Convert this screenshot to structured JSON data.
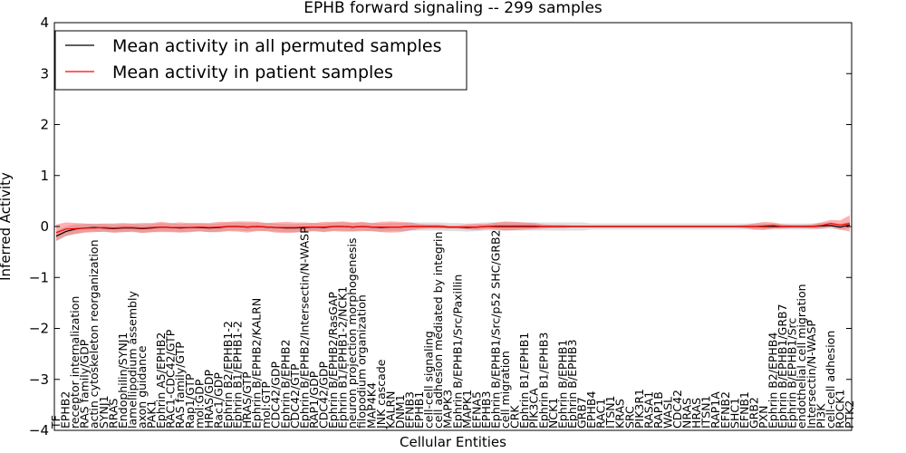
{
  "chart_data": {
    "type": "line",
    "title": "EPHB forward signaling -- 299 samples",
    "xlabel": "Cellular Entities",
    "ylabel": "Inferred Activity",
    "ylim": [
      -4,
      4
    ],
    "yticks": [
      -4,
      -3,
      -2,
      -1,
      0,
      1,
      2,
      3,
      4
    ],
    "grid": false,
    "legend_position": "top-left",
    "categories": [
      "TF",
      "EPHB2",
      "receptor internalization",
      "RAS family/GDP",
      "actin cytoskeleton reorganization",
      "SYNJ1",
      "RRAS",
      "Endophilin/SYNJ1",
      "lamellipodium assembly",
      "axon guidance",
      "PAK1",
      "Ephrin A5/EPHB2",
      "RAC1-CDC42/GTP",
      "RAS family/GTP",
      "Rap1/GTP",
      "mol:GDP",
      "HRAS/GDP",
      "Rac1/GDP",
      "Ephrin B2/EPHB1-2",
      "Ephrin B1/EPHB1-2",
      "HRAS/GTP",
      "Ephrin B/EPHB2/KALRN",
      "mol:GTP",
      "CDC42/GDP",
      "Ephrin B/EPHB2",
      "CDC42/GTP",
      "Ephrin B/EPHB2/Intersectin/N-WASP",
      "RAP1/GDP",
      "CDC42/GDP",
      "Ephrin B/EPHB2/RasGAP",
      "Ephrin B1/EPHB1-2/NCK1",
      "neuron projection morphogenesis",
      "filopodium organization",
      "MAP4K4",
      "JNK cascade",
      "KALRN",
      "DNM1",
      "EFNB3",
      "EPHB1",
      "cell-cell signaling",
      "cell adhesion mediated by integrin",
      "MAPK3",
      "Ephrin B/EPHB1/Src/Paxillin",
      "MAPK1",
      "EFNA5",
      "EPHB3",
      "Ephrin B/EPHB1/Src/p52 SHC/GRB2",
      "cell migration",
      "CRK",
      "Ephrin B1/EPHB1",
      "PIK3CA",
      "Ephrin B1/EPHB3",
      "NCK1",
      "Ephrin B/EPHB1",
      "Ephrin B/EPHB3",
      "GRB7",
      "EPHB4",
      "RAC1",
      "ITSN1",
      "KRAS",
      "SRC",
      "PIK3R1",
      "RASA1",
      "RAP1B",
      "WASL",
      "CDC42",
      "NRAS",
      "HRAS",
      "ITSN1",
      "RAP1A",
      "EFNB2",
      "SHC1",
      "EFNB1",
      "GRB2",
      "PXN",
      "Ephrin B2/EPHB4",
      "Ephrin B/EPHB1/GRB7",
      "Ephrin B/EPHB1/Src",
      "endothelial cell migration",
      "Intersectin/N-WASP",
      "PI3K",
      "cell-cell adhesion",
      "ROCK1",
      "PTK2"
    ],
    "series": [
      {
        "name": "Mean activity in all permuted samples",
        "color": "#000000",
        "values": [
          -0.19,
          -0.1,
          -0.05,
          -0.03,
          -0.02,
          -0.03,
          -0.04,
          -0.03,
          -0.03,
          -0.04,
          -0.03,
          -0.01,
          -0.02,
          -0.03,
          -0.02,
          -0.02,
          -0.03,
          -0.02,
          0.0,
          0.0,
          -0.01,
          0.0,
          -0.01,
          -0.02,
          -0.03,
          -0.03,
          -0.02,
          -0.01,
          -0.02,
          0.0,
          0.0,
          -0.01,
          0.0,
          -0.01,
          -0.02,
          -0.01,
          -0.01,
          0.0,
          0.0,
          0.0,
          0.0,
          -0.01,
          -0.01,
          -0.02,
          -0.01,
          0.0,
          0.0,
          0.0,
          0.0,
          0.0,
          0.0,
          0.0,
          0.0,
          0.0,
          0.0,
          0.0,
          0.0,
          0.0,
          0.0,
          0.0,
          0.0,
          0.0,
          0.0,
          0.0,
          0.0,
          0.0,
          0.0,
          0.0,
          0.0,
          0.0,
          0.0,
          0.0,
          0.0,
          0.0,
          0.0,
          0.0,
          0.0,
          0.0,
          0.0,
          0.0,
          0.01,
          0.02,
          -0.01,
          0.03
        ]
      },
      {
        "name": "Mean activity in patient samples",
        "color": "#ff0000",
        "values": [
          -0.12,
          -0.05,
          -0.04,
          -0.03,
          -0.03,
          -0.02,
          -0.03,
          -0.02,
          -0.02,
          -0.03,
          -0.02,
          -0.01,
          -0.02,
          -0.02,
          -0.02,
          -0.01,
          -0.02,
          -0.01,
          0.0,
          0.0,
          -0.01,
          0.0,
          -0.01,
          -0.02,
          -0.02,
          -0.02,
          -0.01,
          -0.01,
          -0.01,
          0.0,
          0.0,
          -0.01,
          0.0,
          -0.01,
          -0.01,
          -0.01,
          -0.01,
          0.0,
          0.0,
          0.0,
          0.0,
          -0.01,
          -0.01,
          -0.01,
          -0.01,
          0.0,
          0.01,
          0.01,
          0.01,
          0.01,
          0.01,
          0.0,
          0.0,
          0.0,
          0.0,
          0.0,
          0.0,
          0.0,
          0.0,
          0.0,
          0.0,
          0.0,
          0.0,
          0.0,
          0.0,
          0.0,
          0.0,
          0.0,
          0.0,
          0.0,
          0.0,
          0.0,
          0.0,
          0.0,
          0.01,
          0.02,
          0.0,
          0.0,
          0.0,
          0.0,
          0.02,
          0.06,
          0.03,
          0.06
        ]
      }
    ],
    "bands": {
      "permuted_spread": [
        0.1,
        0.1,
        0.09,
        0.08,
        0.08,
        0.08,
        0.08,
        0.08,
        0.08,
        0.08,
        0.08,
        0.08,
        0.08,
        0.08,
        0.08,
        0.08,
        0.08,
        0.08,
        0.08,
        0.08,
        0.08,
        0.08,
        0.08,
        0.08,
        0.08,
        0.08,
        0.08,
        0.08,
        0.08,
        0.08,
        0.08,
        0.08,
        0.08,
        0.08,
        0.08,
        0.08,
        0.08,
        0.08,
        0.08,
        0.08,
        0.08,
        0.08,
        0.08,
        0.08,
        0.08,
        0.08,
        0.08,
        0.08,
        0.08,
        0.08,
        0.08,
        0.08,
        0.08,
        0.08,
        0.08,
        0.08,
        0.06,
        0.06,
        0.06,
        0.06,
        0.06,
        0.06,
        0.06,
        0.06,
        0.06,
        0.06,
        0.06,
        0.06,
        0.06,
        0.06,
        0.06,
        0.06,
        0.06,
        0.06,
        0.06,
        0.06,
        0.06,
        0.06,
        0.06,
        0.06,
        0.06,
        0.06,
        0.06,
        0.06
      ],
      "patient_spread": [
        0.16,
        0.13,
        0.11,
        0.09,
        0.08,
        0.08,
        0.09,
        0.09,
        0.08,
        0.1,
        0.09,
        0.1,
        0.09,
        0.1,
        0.09,
        0.08,
        0.09,
        0.1,
        0.09,
        0.1,
        0.11,
        0.09,
        0.08,
        0.1,
        0.11,
        0.1,
        0.09,
        0.08,
        0.1,
        0.09,
        0.1,
        0.09,
        0.09,
        0.08,
        0.1,
        0.11,
        0.1,
        0.08,
        0.05,
        0.04,
        0.04,
        0.03,
        0.03,
        0.05,
        0.06,
        0.05,
        0.07,
        0.09,
        0.08,
        0.07,
        0.06,
        0.04,
        0.03,
        0.03,
        0.02,
        0.02,
        0.02,
        0.02,
        0.02,
        0.02,
        0.02,
        0.02,
        0.02,
        0.02,
        0.02,
        0.02,
        0.02,
        0.02,
        0.02,
        0.02,
        0.02,
        0.02,
        0.03,
        0.06,
        0.08,
        0.06,
        0.04,
        0.03,
        0.03,
        0.04,
        0.06,
        0.07,
        0.09,
        0.16
      ]
    }
  }
}
